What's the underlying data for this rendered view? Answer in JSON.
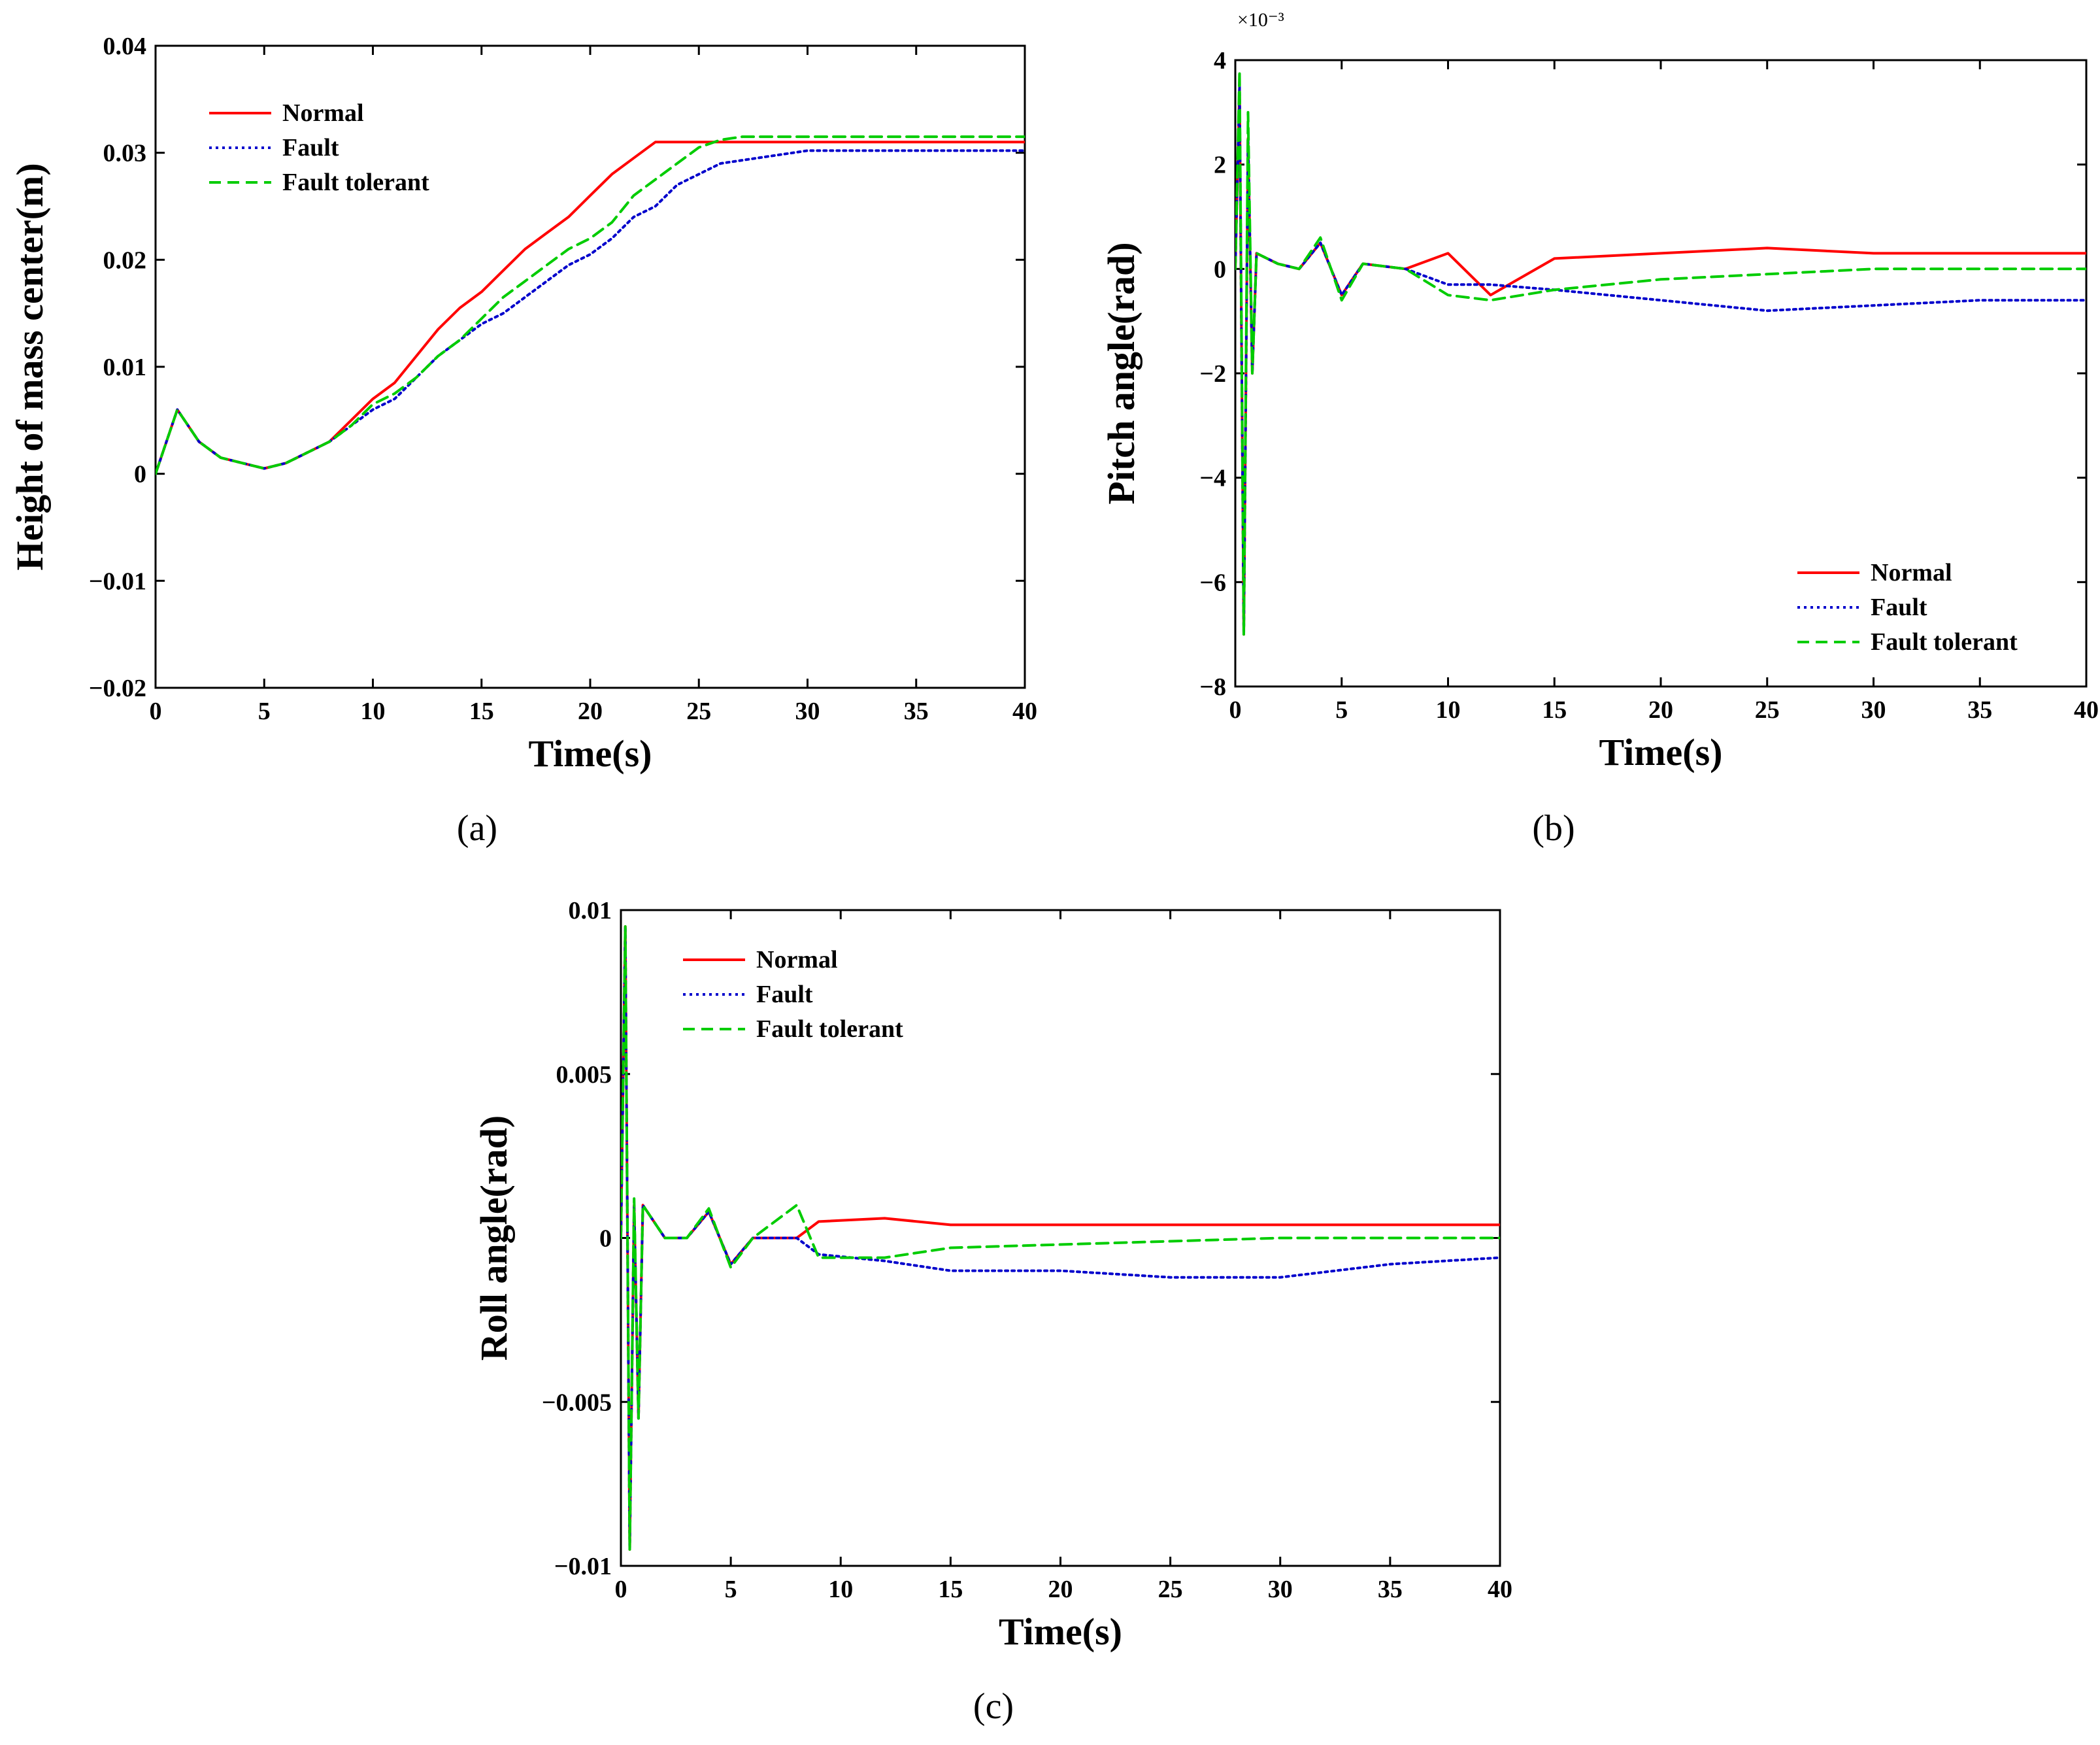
{
  "colors": {
    "normal": "#ff0000",
    "fault": "#0000cc",
    "fault_tolerant": "#00cc00",
    "axes": "#000000",
    "background": "#ffffff"
  },
  "chart_data": [
    {
      "id": "a",
      "type": "line",
      "caption": "(a)",
      "xlabel": "Time(s)",
      "ylabel": "Height of mass center(m)",
      "xlim": [
        0,
        40
      ],
      "ylim": [
        -0.02,
        0.04
      ],
      "x_ticks": [
        0,
        5,
        10,
        15,
        20,
        25,
        30,
        35,
        40
      ],
      "x_tick_labels": [
        "0",
        "5",
        "10",
        "15",
        "20",
        "25",
        "30",
        "35",
        "40"
      ],
      "y_ticks": [
        -0.02,
        -0.01,
        0,
        0.01,
        0.02,
        0.03,
        0.04
      ],
      "y_tick_labels": [
        "−0.02",
        "−0.01",
        "0",
        "0.01",
        "0.02",
        "0.03",
        "0.04"
      ],
      "y_exponent_label": "",
      "legend": {
        "position": "top-left",
        "entries": [
          "Normal",
          "Fault",
          "Fault tolerant"
        ]
      },
      "series": [
        {
          "name": "Normal",
          "style": "solid",
          "x": [
            0,
            1,
            2,
            3,
            4,
            5,
            6,
            7,
            8,
            9,
            10,
            11,
            12,
            13,
            14,
            15,
            16,
            17,
            18,
            19,
            20,
            21,
            22,
            23,
            24,
            25,
            26,
            27,
            28,
            29,
            30,
            35,
            40
          ],
          "y": [
            0,
            0.006,
            0.003,
            0.0015,
            0.001,
            0.0005,
            0.001,
            0.002,
            0.003,
            0.005,
            0.007,
            0.0085,
            0.011,
            0.0135,
            0.0155,
            0.017,
            0.019,
            0.021,
            0.0225,
            0.024,
            0.026,
            0.028,
            0.0295,
            0.031,
            0.031,
            0.031,
            0.031,
            0.031,
            0.031,
            0.031,
            0.031,
            0.031,
            0.031
          ]
        },
        {
          "name": "Fault",
          "style": "dotted",
          "x": [
            0,
            1,
            2,
            3,
            4,
            5,
            6,
            7,
            8,
            9,
            10,
            11,
            12,
            13,
            14,
            15,
            16,
            17,
            18,
            19,
            20,
            21,
            22,
            23,
            24,
            25,
            26,
            27,
            28,
            29,
            30,
            35,
            40
          ],
          "y": [
            0,
            0.006,
            0.003,
            0.0015,
            0.001,
            0.0005,
            0.001,
            0.002,
            0.003,
            0.0045,
            0.006,
            0.007,
            0.009,
            0.011,
            0.0125,
            0.014,
            0.015,
            0.0165,
            0.018,
            0.0195,
            0.0205,
            0.022,
            0.024,
            0.025,
            0.027,
            0.028,
            0.029,
            0.0293,
            0.0296,
            0.0299,
            0.0302,
            0.0302,
            0.0302
          ]
        },
        {
          "name": "Fault tolerant",
          "style": "dashed",
          "x": [
            0,
            1,
            2,
            3,
            4,
            5,
            6,
            7,
            8,
            9,
            10,
            11,
            12,
            13,
            14,
            15,
            16,
            17,
            18,
            19,
            20,
            21,
            22,
            23,
            24,
            25,
            26,
            27,
            28,
            29,
            30,
            35,
            40
          ],
          "y": [
            0,
            0.006,
            0.003,
            0.0015,
            0.001,
            0.0005,
            0.001,
            0.002,
            0.003,
            0.0045,
            0.0065,
            0.0075,
            0.009,
            0.011,
            0.0125,
            0.0145,
            0.0165,
            0.018,
            0.0195,
            0.021,
            0.022,
            0.0235,
            0.026,
            0.0275,
            0.029,
            0.0305,
            0.0312,
            0.0315,
            0.0315,
            0.0315,
            0.0315,
            0.0315,
            0.0315
          ]
        }
      ]
    },
    {
      "id": "b",
      "type": "line",
      "caption": "(b)",
      "xlabel": "Time(s)",
      "ylabel": "Pitch angle(rad)",
      "xlim": [
        0,
        40
      ],
      "ylim": [
        -8,
        4
      ],
      "x_ticks": [
        0,
        5,
        10,
        15,
        20,
        25,
        30,
        35,
        40
      ],
      "x_tick_labels": [
        "0",
        "5",
        "10",
        "15",
        "20",
        "25",
        "30",
        "35",
        "40"
      ],
      "y_ticks": [
        -8,
        -6,
        -4,
        -2,
        0,
        2,
        4
      ],
      "y_tick_labels": [
        "−8",
        "−6",
        "−4",
        "−2",
        "0",
        "2",
        "4"
      ],
      "y_exponent_label": "×10⁻³",
      "legend": {
        "position": "bottom-right",
        "entries": [
          "Normal",
          "Fault",
          "Fault tolerant"
        ]
      },
      "series": [
        {
          "name": "Normal",
          "style": "solid",
          "x": [
            0,
            0.2,
            0.4,
            0.6,
            0.8,
            1,
            2,
            3,
            4,
            5,
            6,
            8,
            10,
            12,
            15,
            20,
            25,
            30,
            35,
            40
          ],
          "y": [
            0,
            3.5,
            -7,
            2.5,
            -2,
            0.3,
            0.1,
            0,
            0.5,
            -0.5,
            0.1,
            0,
            0.3,
            -0.5,
            0.2,
            0.3,
            0.4,
            0.3,
            0.3,
            0.3
          ]
        },
        {
          "name": "Fault",
          "style": "dotted",
          "x": [
            0,
            0.2,
            0.4,
            0.6,
            0.8,
            1,
            2,
            3,
            4,
            5,
            6,
            8,
            10,
            12,
            15,
            20,
            25,
            30,
            35,
            40
          ],
          "y": [
            0,
            3.5,
            -7,
            2.5,
            -2,
            0.3,
            0.1,
            0,
            0.5,
            -0.5,
            0.1,
            0,
            -0.3,
            -0.3,
            -0.4,
            -0.6,
            -0.8,
            -0.7,
            -0.6,
            -0.6
          ]
        },
        {
          "name": "Fault tolerant",
          "style": "dashed",
          "x": [
            0,
            0.2,
            0.4,
            0.6,
            0.8,
            1,
            2,
            3,
            4,
            5,
            6,
            8,
            10,
            12,
            15,
            20,
            25,
            30,
            35,
            40
          ],
          "y": [
            0,
            3.8,
            -7,
            3,
            -2,
            0.3,
            0.1,
            0,
            0.6,
            -0.6,
            0.1,
            0,
            -0.5,
            -0.6,
            -0.4,
            -0.2,
            -0.1,
            0,
            0,
            0
          ]
        }
      ]
    },
    {
      "id": "c",
      "type": "line",
      "caption": "(c)",
      "xlabel": "Time(s)",
      "ylabel": "Roll angle(rad)",
      "xlim": [
        0,
        40
      ],
      "ylim": [
        -0.01,
        0.01
      ],
      "x_ticks": [
        0,
        5,
        10,
        15,
        20,
        25,
        30,
        35,
        40
      ],
      "x_tick_labels": [
        "0",
        "5",
        "10",
        "15",
        "20",
        "25",
        "30",
        "35",
        "40"
      ],
      "y_ticks": [
        -0.01,
        -0.005,
        0,
        0.005,
        0.01
      ],
      "y_tick_labels": [
        "−0.01",
        "−0.005",
        "0",
        "0.005",
        "0.01"
      ],
      "y_exponent_label": "",
      "legend": {
        "position": "top-left",
        "entries": [
          "Normal",
          "Fault",
          "Fault tolerant"
        ]
      },
      "series": [
        {
          "name": "Normal",
          "style": "solid",
          "x": [
            0,
            0.2,
            0.4,
            0.6,
            0.8,
            1,
            2,
            3,
            4,
            5,
            6,
            8,
            9,
            12,
            15,
            20,
            25,
            30,
            35,
            40
          ],
          "y": [
            0,
            0.0095,
            -0.0095,
            0.001,
            -0.0055,
            0.001,
            0,
            0,
            0.0008,
            -0.0008,
            0,
            0,
            0.0005,
            0.0006,
            0.0004,
            0.0004,
            0.0004,
            0.0004,
            0.0004,
            0.0004
          ]
        },
        {
          "name": "Fault",
          "style": "dotted",
          "x": [
            0,
            0.2,
            0.4,
            0.6,
            0.8,
            1,
            2,
            3,
            4,
            5,
            6,
            8,
            9,
            12,
            15,
            20,
            25,
            30,
            35,
            40
          ],
          "y": [
            0,
            0.0095,
            -0.0095,
            0.001,
            -0.0055,
            0.001,
            0,
            0,
            0.0008,
            -0.0008,
            0,
            0,
            -0.0005,
            -0.0007,
            -0.001,
            -0.001,
            -0.0012,
            -0.0012,
            -0.0008,
            -0.0006
          ]
        },
        {
          "name": "Fault tolerant",
          "style": "dashed",
          "x": [
            0,
            0.2,
            0.4,
            0.6,
            0.8,
            1,
            2,
            3,
            4,
            5,
            6,
            8,
            9,
            12,
            15,
            20,
            25,
            30,
            35,
            40
          ],
          "y": [
            0,
            0.0095,
            -0.0095,
            0.0012,
            -0.0055,
            0.001,
            0,
            0,
            0.0009,
            -0.0009,
            0,
            0.001,
            -0.0006,
            -0.0006,
            -0.0003,
            -0.0002,
            -0.0001,
            0,
            0,
            0
          ]
        }
      ]
    }
  ]
}
